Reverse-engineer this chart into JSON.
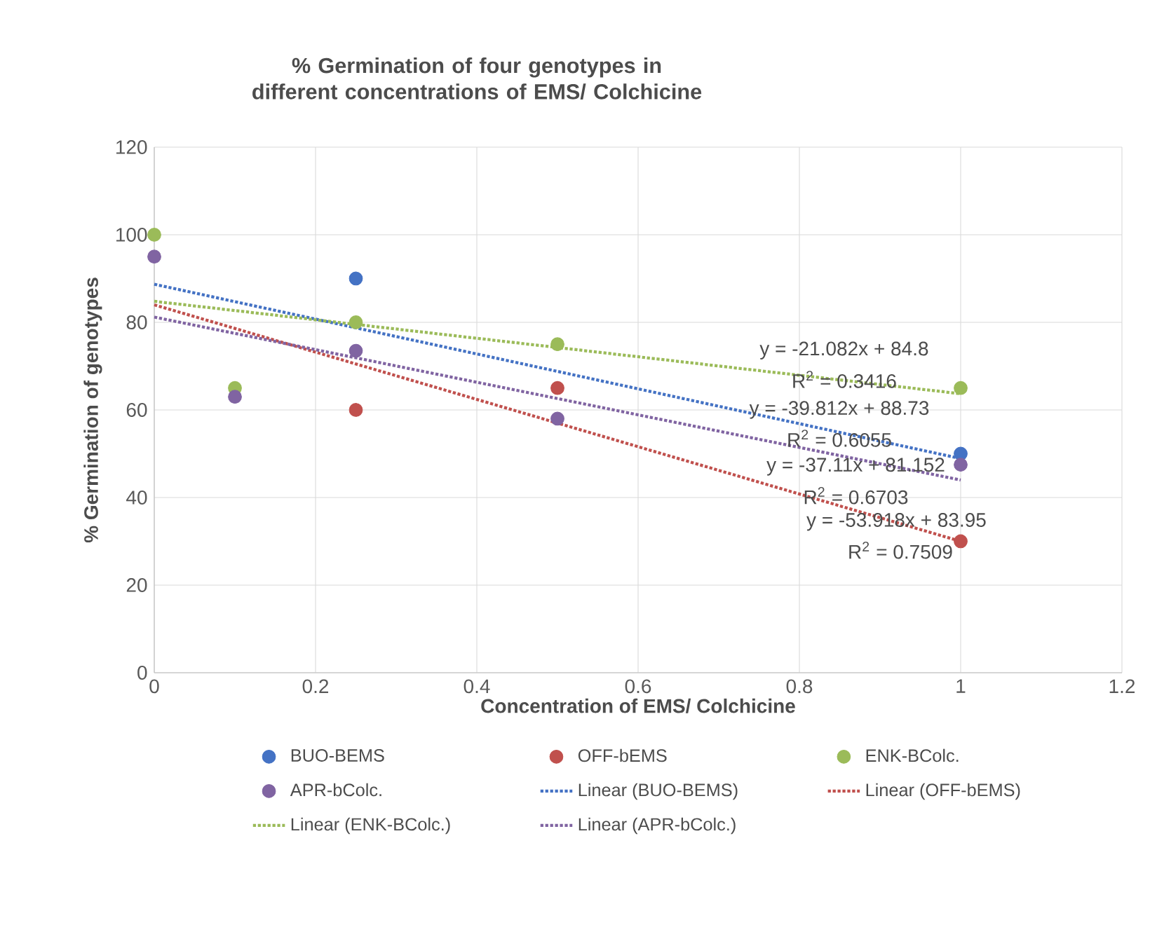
{
  "chart_data": {
    "type": "scatter",
    "title": "% Germination of four genotypes in different concentrations of EMS/ Colchicine",
    "xlabel": "Concentration of EMS/ Colchicine",
    "ylabel": "% Germination of  genotypes",
    "xlim": [
      0,
      1.2
    ],
    "ylim": [
      0,
      120
    ],
    "xticks": [
      0,
      0.2,
      0.4,
      0.6,
      0.8,
      1,
      1.2
    ],
    "yticks": [
      0,
      20,
      40,
      60,
      80,
      100,
      120
    ],
    "grid": true,
    "legend": "bottom",
    "x": [
      0,
      0.1,
      0.25,
      0.5,
      1
    ],
    "series": [
      {
        "name": "BUO-BEMS",
        "marker": "circle",
        "color": "#4472c4",
        "values": [
          null,
          null,
          90,
          null,
          50
        ]
      },
      {
        "name": "OFF-bEMS",
        "marker": "circle",
        "color": "#c0504d",
        "values": [
          null,
          null,
          60,
          65,
          30
        ]
      },
      {
        "name": "ENK-BColc.",
        "marker": "circle",
        "color": "#9bbb59",
        "values": [
          100,
          65,
          80,
          75,
          65
        ]
      },
      {
        "name": "APR-bColc.",
        "marker": "circle",
        "color": "#8064a2",
        "values": [
          95,
          63,
          73.5,
          58,
          47.5
        ]
      },
      {
        "name": "Linear (BUO-BEMS)",
        "type": "line",
        "line_style": "dotted",
        "marker": "none",
        "color": "#4472c4",
        "values": [
          88.7,
          null,
          null,
          null,
          48.9
        ]
      },
      {
        "name": "Linear (OFF-bEMS)",
        "type": "line",
        "line_style": "dotted",
        "marker": "none",
        "color": "#c0504d",
        "values": [
          84,
          null,
          null,
          null,
          30
        ]
      },
      {
        "name": "Linear (ENK-BColc.)",
        "type": "line",
        "line_style": "dotted",
        "marker": "none",
        "color": "#9bbb59",
        "values": [
          84.8,
          null,
          null,
          null,
          63.7
        ]
      },
      {
        "name": "Linear (APR-bColc.)",
        "type": "line",
        "line_style": "dotted",
        "marker": "none",
        "color": "#8064a2",
        "values": [
          81.2,
          null,
          null,
          null,
          44
        ]
      }
    ],
    "annotations": [
      "y = -21.082x + 84.8",
      "R$^{2}$ = 0.3416",
      "y = -39.812x + 88.73",
      "R$^{2}$ = 0.6055",
      "y = -37.11x + 81.152",
      "R$^{2}$ = 0.6703",
      "y = -53.918x + 83.95",
      "R$^{2}$ = 0.7509"
    ]
  }
}
